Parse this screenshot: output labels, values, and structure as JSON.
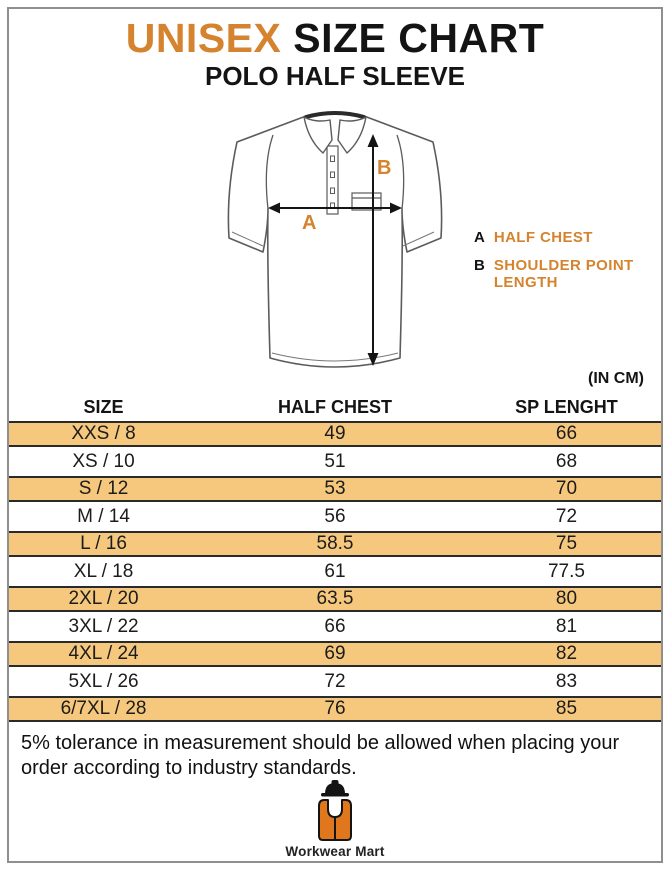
{
  "page": {
    "title_accent": "UNISEX",
    "title_rest": " SIZE CHART",
    "subtitle": "POLO HALF SLEEVE",
    "unit_label": "(IN CM)",
    "note": "5% tolerance in measurement should be allowed when placing your\norder according to industry standards."
  },
  "diagram": {
    "marker_a": "A",
    "marker_b": "B",
    "legend": [
      {
        "key": "A",
        "label": "HALF CHEST"
      },
      {
        "key": "B",
        "label": "SHOULDER POINT\nLENGTH"
      }
    ]
  },
  "table": {
    "columns": [
      "SIZE",
      "HALF CHEST",
      "SP LENGHT"
    ],
    "rows": [
      {
        "size": "XXS / 8",
        "half_chest": "49",
        "sp_length": "66"
      },
      {
        "size": "XS / 10",
        "half_chest": "51",
        "sp_length": "68"
      },
      {
        "size": "S / 12",
        "half_chest": "53",
        "sp_length": "70"
      },
      {
        "size": "M / 14",
        "half_chest": "56",
        "sp_length": "72"
      },
      {
        "size": "L / 16",
        "half_chest": "58.5",
        "sp_length": "75"
      },
      {
        "size": "XL / 18",
        "half_chest": "61",
        "sp_length": "77.5"
      },
      {
        "size": "2XL / 20",
        "half_chest": "63.5",
        "sp_length": "80"
      },
      {
        "size": "3XL / 22",
        "half_chest": "66",
        "sp_length": "81"
      },
      {
        "size": "4XL / 24",
        "half_chest": "69",
        "sp_length": "82"
      },
      {
        "size": "5XL / 26",
        "half_chest": "72",
        "sp_length": "83"
      },
      {
        "size": "6/7XL / 28",
        "half_chest": "76",
        "sp_length": "85"
      }
    ]
  },
  "logo": {
    "name": "Workwear Mart"
  },
  "colors": {
    "accent": "#D5832E",
    "band": "#F6C87D",
    "vest_orange": "#E0771C"
  }
}
